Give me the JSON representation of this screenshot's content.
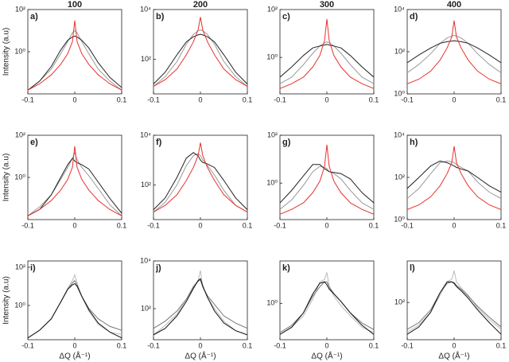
{
  "column_titles": [
    "100",
    "200",
    "300",
    "400"
  ],
  "chart_data": [
    {
      "type": "line",
      "title": "a)",
      "ylabel": "Intensity (a.u)",
      "log_y": true,
      "x": [
        -0.1,
        -0.075,
        -0.05,
        -0.03,
        -0.015,
        -0.005,
        0,
        0.005,
        0.015,
        0.03,
        0.05,
        0.075,
        0.1
      ],
      "xlim": [
        -0.1,
        0.1
      ],
      "xticks": [
        -0.1,
        0,
        0.1
      ],
      "ylim": [
        0.01,
        100
      ],
      "yticks": [
        {
          "value": 1,
          "label": "10⁰"
        },
        {
          "value": 100,
          "label": "10²"
        }
      ],
      "series": [
        {
          "color": "#9a9a9a",
          "values": [
            0.015,
            0.04,
            0.15,
            0.8,
            3,
            8,
            10,
            8,
            3,
            0.8,
            0.15,
            0.04,
            0.015
          ]
        },
        {
          "color": "#222222",
          "values": [
            0.015,
            0.04,
            0.2,
            1.2,
            3.5,
            5,
            5.5,
            5,
            3.5,
            1.5,
            0.3,
            0.06,
            0.02
          ]
        },
        {
          "color": "#e8322d",
          "values": [
            0.015,
            0.03,
            0.08,
            0.25,
            0.8,
            3,
            30,
            3,
            0.8,
            0.25,
            0.08,
            0.03,
            0.015
          ]
        }
      ]
    },
    {
      "type": "line",
      "title": "b)",
      "log_y": true,
      "x": [
        -0.1,
        -0.075,
        -0.05,
        -0.03,
        -0.015,
        -0.005,
        0,
        0.005,
        0.015,
        0.03,
        0.05,
        0.075,
        0.1
      ],
      "xlim": [
        -0.1,
        0.1
      ],
      "xticks": [
        -0.1,
        0,
        0.1
      ],
      "ylim": [
        4,
        10000
      ],
      "yticks": [
        {
          "value": 100,
          "label": "10²"
        },
        {
          "value": 10000,
          "label": "10⁴"
        }
      ],
      "series": [
        {
          "color": "#9a9a9a",
          "values": [
            8,
            20,
            80,
            400,
            1000,
            1400,
            1500,
            1400,
            1000,
            400,
            80,
            20,
            8
          ]
        },
        {
          "color": "#222222",
          "values": [
            10,
            30,
            150,
            500,
            800,
            950,
            1000,
            950,
            800,
            500,
            150,
            30,
            10
          ]
        },
        {
          "color": "#e8322d",
          "values": [
            8,
            15,
            40,
            150,
            500,
            1500,
            5000,
            1500,
            500,
            150,
            40,
            15,
            8
          ]
        }
      ]
    },
    {
      "type": "line",
      "title": "c)",
      "log_y": true,
      "x": [
        -0.1,
        -0.075,
        -0.05,
        -0.03,
        -0.015,
        -0.005,
        0,
        0.005,
        0.015,
        0.03,
        0.05,
        0.075,
        0.1
      ],
      "xlim": [
        -0.1,
        0.1
      ],
      "xticks": [
        -0.1,
        0,
        0.1
      ],
      "ylim": [
        0.03,
        100
      ],
      "yticks": [
        {
          "value": 1,
          "label": "10⁰"
        },
        {
          "value": 100,
          "label": "10²"
        }
      ],
      "series": [
        {
          "color": "#9a9a9a",
          "values": [
            0.08,
            0.15,
            0.5,
            1.5,
            3,
            4,
            4.5,
            4,
            3,
            1.5,
            0.5,
            0.15,
            0.08
          ]
        },
        {
          "color": "#222222",
          "values": [
            0.15,
            0.4,
            1.2,
            2.5,
            3,
            3.3,
            3.5,
            3.3,
            3,
            2.5,
            1.2,
            0.4,
            0.15
          ]
        },
        {
          "color": "#e8322d",
          "values": [
            0.05,
            0.08,
            0.15,
            0.4,
            1.2,
            5,
            40,
            5,
            1.2,
            0.4,
            0.15,
            0.08,
            0.05
          ]
        }
      ]
    },
    {
      "type": "line",
      "title": "d)",
      "log_y": true,
      "x": [
        -0.1,
        -0.075,
        -0.05,
        -0.03,
        -0.015,
        -0.005,
        0,
        0.005,
        0.015,
        0.03,
        0.05,
        0.075,
        0.1
      ],
      "xlim": [
        -0.1,
        0.1
      ],
      "xticks": [
        -0.1,
        0,
        0.1
      ],
      "ylim": [
        1,
        10000
      ],
      "yticks": [
        {
          "value": 1,
          "label": "10⁰"
        },
        {
          "value": 100,
          "label": "10²"
        },
        {
          "value": 10000,
          "label": "10⁴"
        }
      ],
      "series": [
        {
          "color": "#9a9a9a",
          "values": [
            10,
            25,
            80,
            250,
            450,
            550,
            600,
            550,
            450,
            250,
            80,
            25,
            10
          ]
        },
        {
          "color": "#222222",
          "values": [
            30,
            70,
            150,
            250,
            300,
            320,
            330,
            320,
            300,
            250,
            150,
            70,
            30
          ]
        },
        {
          "color": "#e8322d",
          "values": [
            3,
            5,
            12,
            40,
            150,
            500,
            3000,
            500,
            150,
            40,
            12,
            5,
            3
          ]
        }
      ]
    },
    {
      "type": "line",
      "title": "e)",
      "ylabel": "Intensity (a.u)",
      "log_y": true,
      "x": [
        -0.1,
        -0.075,
        -0.05,
        -0.03,
        -0.015,
        -0.005,
        0,
        0.005,
        0.015,
        0.03,
        0.05,
        0.075,
        0.1
      ],
      "xlim": [
        -0.1,
        0.1
      ],
      "xticks": [
        -0.1,
        0,
        0.1
      ],
      "ylim": [
        0.01,
        100
      ],
      "yticks": [
        {
          "value": 1,
          "label": "10⁰"
        },
        {
          "value": 100,
          "label": "10²"
        }
      ],
      "series": [
        {
          "color": "#9a9a9a",
          "values": [
            0.015,
            0.04,
            0.15,
            0.8,
            3,
            8,
            15,
            7,
            3,
            1.2,
            0.3,
            0.05,
            0.015
          ]
        },
        {
          "color": "#222222",
          "values": [
            0.015,
            0.03,
            0.15,
            1,
            4,
            8,
            6,
            5,
            4,
            2.5,
            0.6,
            0.1,
            0.02
          ]
        },
        {
          "color": "#e8322d",
          "values": [
            0.015,
            0.03,
            0.08,
            0.25,
            0.8,
            3,
            30,
            3,
            0.8,
            0.25,
            0.08,
            0.03,
            0.015
          ]
        }
      ]
    },
    {
      "type": "line",
      "title": "f)",
      "log_y": true,
      "x": [
        -0.1,
        -0.075,
        -0.05,
        -0.03,
        -0.015,
        -0.005,
        0,
        0.005,
        0.015,
        0.03,
        0.05,
        0.075,
        0.1
      ],
      "xlim": [
        -0.1,
        0.1
      ],
      "xticks": [
        -0.1,
        0,
        0.1
      ],
      "ylim": [
        4,
        10000
      ],
      "yticks": [
        {
          "value": 100,
          "label": "10²"
        },
        {
          "value": 10000,
          "label": "10⁴"
        }
      ],
      "series": [
        {
          "color": "#9a9a9a",
          "values": [
            8,
            20,
            100,
            600,
            1500,
            1800,
            1500,
            1000,
            600,
            250,
            60,
            15,
            8
          ]
        },
        {
          "color": "#222222",
          "values": [
            10,
            30,
            200,
            1200,
            2000,
            1500,
            1000,
            800,
            700,
            500,
            150,
            30,
            10
          ]
        },
        {
          "color": "#e8322d",
          "values": [
            8,
            15,
            40,
            150,
            500,
            1500,
            5000,
            1500,
            500,
            150,
            40,
            15,
            8
          ]
        }
      ]
    },
    {
      "type": "line",
      "title": "g)",
      "log_y": true,
      "x": [
        -0.1,
        -0.075,
        -0.05,
        -0.03,
        -0.015,
        -0.005,
        0,
        0.005,
        0.015,
        0.03,
        0.05,
        0.075,
        0.1
      ],
      "xlim": [
        -0.1,
        0.1
      ],
      "xticks": [
        -0.1,
        0,
        0.1
      ],
      "ylim": [
        0.03,
        100
      ],
      "yticks": [
        {
          "value": 1,
          "label": "10⁰"
        },
        {
          "value": 100,
          "label": "10²"
        }
      ],
      "series": [
        {
          "color": "#9a9a9a",
          "values": [
            0.08,
            0.2,
            0.8,
            3,
            5,
            4.5,
            4,
            3,
            2.5,
            1.5,
            0.5,
            0.15,
            0.08
          ]
        },
        {
          "color": "#222222",
          "values": [
            0.15,
            0.5,
            2,
            6,
            6,
            4,
            3.5,
            3,
            2.8,
            2.5,
            1.5,
            0.4,
            0.15
          ]
        },
        {
          "color": "#e8322d",
          "values": [
            0.05,
            0.08,
            0.15,
            0.4,
            1.2,
            5,
            40,
            5,
            1.2,
            0.4,
            0.15,
            0.08,
            0.05
          ]
        }
      ]
    },
    {
      "type": "line",
      "title": "h)",
      "log_y": true,
      "x": [
        -0.1,
        -0.075,
        -0.05,
        -0.03,
        -0.015,
        -0.005,
        0,
        0.005,
        0.015,
        0.03,
        0.05,
        0.075,
        0.1
      ],
      "xlim": [
        -0.1,
        0.1
      ],
      "xticks": [
        -0.1,
        0,
        0.1
      ],
      "ylim": [
        1,
        10000
      ],
      "yticks": [
        {
          "value": 1,
          "label": "10⁰"
        },
        {
          "value": 100,
          "label": "10²"
        },
        {
          "value": 10000,
          "label": "10⁴"
        }
      ],
      "series": [
        {
          "color": "#9a9a9a",
          "values": [
            10,
            30,
            150,
            500,
            600,
            550,
            500,
            400,
            300,
            200,
            60,
            20,
            10
          ]
        },
        {
          "color": "#222222",
          "values": [
            30,
            100,
            350,
            600,
            500,
            400,
            350,
            300,
            250,
            200,
            100,
            40,
            20
          ]
        },
        {
          "color": "#e8322d",
          "values": [
            3,
            5,
            12,
            40,
            150,
            500,
            3000,
            500,
            150,
            40,
            12,
            5,
            3
          ]
        }
      ]
    },
    {
      "type": "line",
      "title": "i)",
      "ylabel": "Intensity (a.u)",
      "xlabel": "ΔQ (Å⁻¹)",
      "log_y": true,
      "x": [
        -0.1,
        -0.075,
        -0.05,
        -0.03,
        -0.015,
        -0.005,
        0,
        0.005,
        0.015,
        0.03,
        0.05,
        0.075,
        0.1
      ],
      "xlim": [
        -0.1,
        0.1
      ],
      "xticks": [
        -0.1,
        0,
        0.1
      ],
      "ylim": [
        0.016,
        215
      ],
      "yticks": [
        {
          "value": 1,
          "label": "10⁰"
        },
        {
          "value": 100,
          "label": "10²"
        }
      ],
      "series": [
        {
          "color": "#bbbbbb",
          "values": [
            0.02,
            0.05,
            0.2,
            1.5,
            8,
            20,
            40,
            15,
            3,
            0.5,
            0.1,
            0.04,
            0.03
          ]
        },
        {
          "color": "#777777",
          "values": [
            0.02,
            0.05,
            0.2,
            1.5,
            7,
            15,
            20,
            12,
            3,
            0.7,
            0.2,
            0.08,
            0.05
          ]
        },
        {
          "color": "#111111",
          "values": [
            0.02,
            0.05,
            0.2,
            1.5,
            7,
            12,
            14,
            10,
            3,
            0.6,
            0.12,
            0.04,
            0.02
          ]
        }
      ]
    },
    {
      "type": "line",
      "title": "j)",
      "xlabel": "ΔQ (Å⁻¹)",
      "log_y": true,
      "x": [
        -0.1,
        -0.075,
        -0.05,
        -0.03,
        -0.015,
        -0.005,
        0,
        0.005,
        0.015,
        0.03,
        0.05,
        0.075,
        0.1
      ],
      "xlim": [
        -0.1,
        0.1
      ],
      "xticks": [
        -0.1,
        0,
        0.1
      ],
      "ylim": [
        5,
        10000
      ],
      "yticks": [
        {
          "value": 100,
          "label": "10²"
        },
        {
          "value": 10000,
          "label": "10⁴"
        }
      ],
      "series": [
        {
          "color": "#bbbbbb",
          "values": [
            8,
            20,
            60,
            250,
            900,
            1500,
            4000,
            800,
            300,
            100,
            30,
            12,
            8
          ]
        },
        {
          "color": "#777777",
          "values": [
            15,
            30,
            80,
            250,
            800,
            1400,
            1600,
            800,
            350,
            150,
            50,
            25,
            15
          ]
        },
        {
          "color": "#111111",
          "values": [
            8,
            15,
            50,
            200,
            700,
            1500,
            1800,
            900,
            300,
            80,
            25,
            12,
            8
          ]
        }
      ]
    },
    {
      "type": "line",
      "title": "k)",
      "xlabel": "ΔQ (Å⁻¹)",
      "log_y": true,
      "x": [
        -0.1,
        -0.075,
        -0.05,
        -0.03,
        -0.015,
        -0.005,
        0,
        0.005,
        0.015,
        0.03,
        0.05,
        0.075,
        0.1
      ],
      "xlim": [
        -0.1,
        0.1
      ],
      "xticks": [
        -0.1,
        0,
        0.1
      ],
      "ylim": [
        0.03,
        60
      ],
      "yticks": [
        {
          "value": 1,
          "label": "10⁰"
        }
      ],
      "series": [
        {
          "color": "#bbbbbb",
          "values": [
            0.05,
            0.1,
            0.3,
            1.5,
            8,
            10,
            20,
            5,
            2,
            0.8,
            0.3,
            0.1,
            0.06
          ]
        },
        {
          "color": "#777777",
          "values": [
            0.06,
            0.12,
            0.4,
            2,
            5,
            8,
            8,
            5,
            2.5,
            1.2,
            0.4,
            0.15,
            0.08
          ]
        },
        {
          "color": "#111111",
          "values": [
            0.05,
            0.1,
            0.4,
            2.5,
            7,
            8,
            6,
            4,
            2.5,
            1.2,
            0.4,
            0.12,
            0.05
          ]
        }
      ]
    },
    {
      "type": "line",
      "title": "l)",
      "xlabel": "ΔQ (Å⁻¹)",
      "log_y": true,
      "x": [
        -0.1,
        -0.075,
        -0.05,
        -0.03,
        -0.015,
        -0.005,
        0,
        0.005,
        0.015,
        0.03,
        0.05,
        0.075,
        0.1
      ],
      "xlim": [
        -0.1,
        0.1
      ],
      "xticks": [
        -0.1,
        0,
        0.1
      ],
      "ylim": [
        3,
        5000
      ],
      "yticks": [
        {
          "value": 100,
          "label": "10²"
        }
      ],
      "series": [
        {
          "color": "#bbbbbb",
          "values": [
            6,
            12,
            40,
            200,
            700,
            900,
            2000,
            700,
            400,
            200,
            60,
            20,
            8
          ]
        },
        {
          "color": "#777777",
          "values": [
            8,
            15,
            50,
            250,
            600,
            700,
            650,
            500,
            350,
            180,
            70,
            25,
            10
          ]
        },
        {
          "color": "#111111",
          "values": [
            5,
            10,
            40,
            250,
            700,
            700,
            600,
            450,
            300,
            150,
            50,
            15,
            5
          ]
        }
      ]
    }
  ]
}
